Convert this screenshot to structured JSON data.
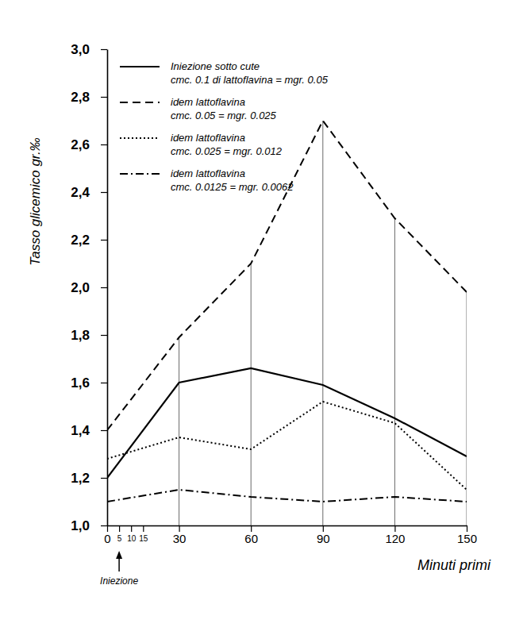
{
  "chart_data": {
    "type": "line",
    "x_label": "Minuti primi",
    "y_label": "Tasso glicemico gr.‰",
    "x": [
      0,
      30,
      60,
      90,
      120,
      150
    ],
    "series": [
      {
        "name": "Iniezione sotto cute\ncmc. 0.1 di lattoflavina = mgr. 0.05",
        "color": "#000000",
        "line_style": "solid",
        "values": [
          1.2,
          1.6,
          1.66,
          1.59,
          1.45,
          1.29
        ]
      },
      {
        "name": "idem lattoflavina\ncmc. 0.05 = mgr. 0.025",
        "color": "#000000",
        "line_style": "dashed",
        "values": [
          1.4,
          1.79,
          2.1,
          2.7,
          2.29,
          1.98
        ]
      },
      {
        "name": "idem lattoflavina\ncmc. 0.025 = mgr. 0.012",
        "color": "#000000",
        "line_style": "dotted",
        "values": [
          1.28,
          1.37,
          1.32,
          1.52,
          1.43,
          1.15
        ]
      },
      {
        "name": "idem lattoflavina\ncmc. 0.0125 = mgr. 0.0062",
        "color": "#000000",
        "line_style": "dashdot",
        "values": [
          1.1,
          1.15,
          1.12,
          1.1,
          1.12,
          1.1
        ]
      }
    ],
    "xlim": [
      0,
      150
    ],
    "xticks": [
      0,
      5,
      10,
      15,
      30,
      60,
      90,
      120,
      150
    ],
    "ylim": [
      1.0,
      3.0
    ],
    "yticks": [
      {
        "value": 1.0,
        "label": "1,0"
      },
      {
        "value": 1.2,
        "label": "1,2"
      },
      {
        "value": 1.4,
        "label": "1,4"
      },
      {
        "value": 1.6,
        "label": "1,6"
      },
      {
        "value": 1.8,
        "label": "1,8"
      },
      {
        "value": 2.0,
        "label": "2,0"
      },
      {
        "value": 2.2,
        "label": "2,2"
      },
      {
        "value": 2.4,
        "label": "2,4"
      },
      {
        "value": 2.6,
        "label": "2,6"
      },
      {
        "value": 2.8,
        "label": "2,8"
      },
      {
        "value": 3.0,
        "label": "3,0"
      }
    ],
    "grid": true,
    "legend": "top-left",
    "annotations": [
      {
        "text": "Iniezione",
        "x": 5
      }
    ]
  }
}
